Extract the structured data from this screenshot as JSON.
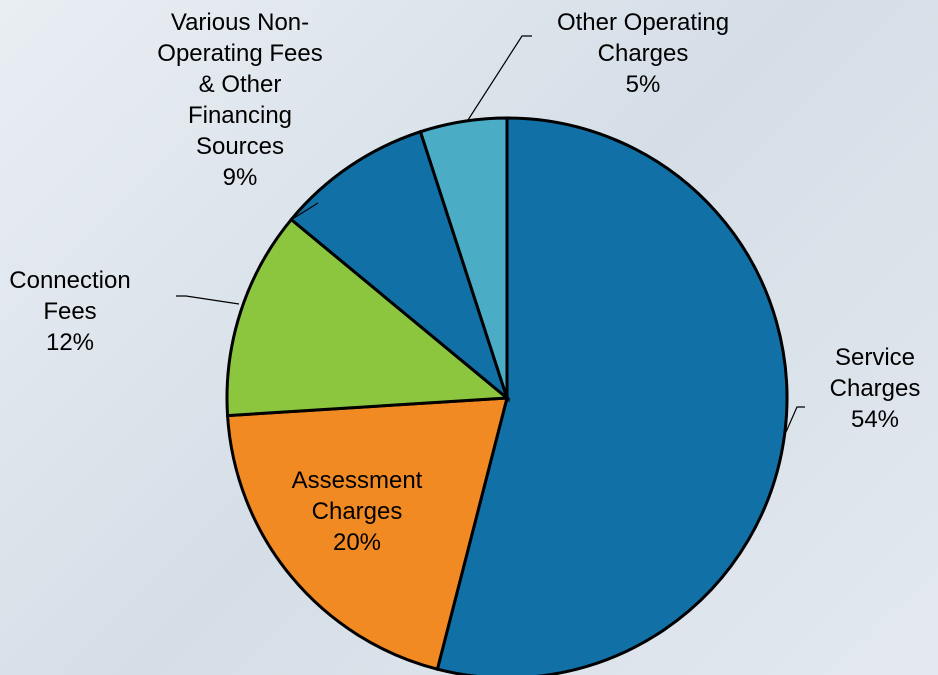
{
  "chart_data": {
    "type": "pie",
    "categories": [
      "Service\nCharges",
      "Assessment\nCharges",
      "Connection\nFees",
      "Various Non-\nOperating Fees\n& Other\nFinancing\nSources",
      "Other Operating\nCharges"
    ],
    "values": [
      54,
      20,
      12,
      9,
      5
    ],
    "value_labels": [
      "54%",
      "20%",
      "12%",
      "9%",
      "5%"
    ],
    "colors": [
      "#1170a6",
      "#f28a24",
      "#8cc63f",
      "#1170a6",
      "#4bacc6"
    ]
  }
}
